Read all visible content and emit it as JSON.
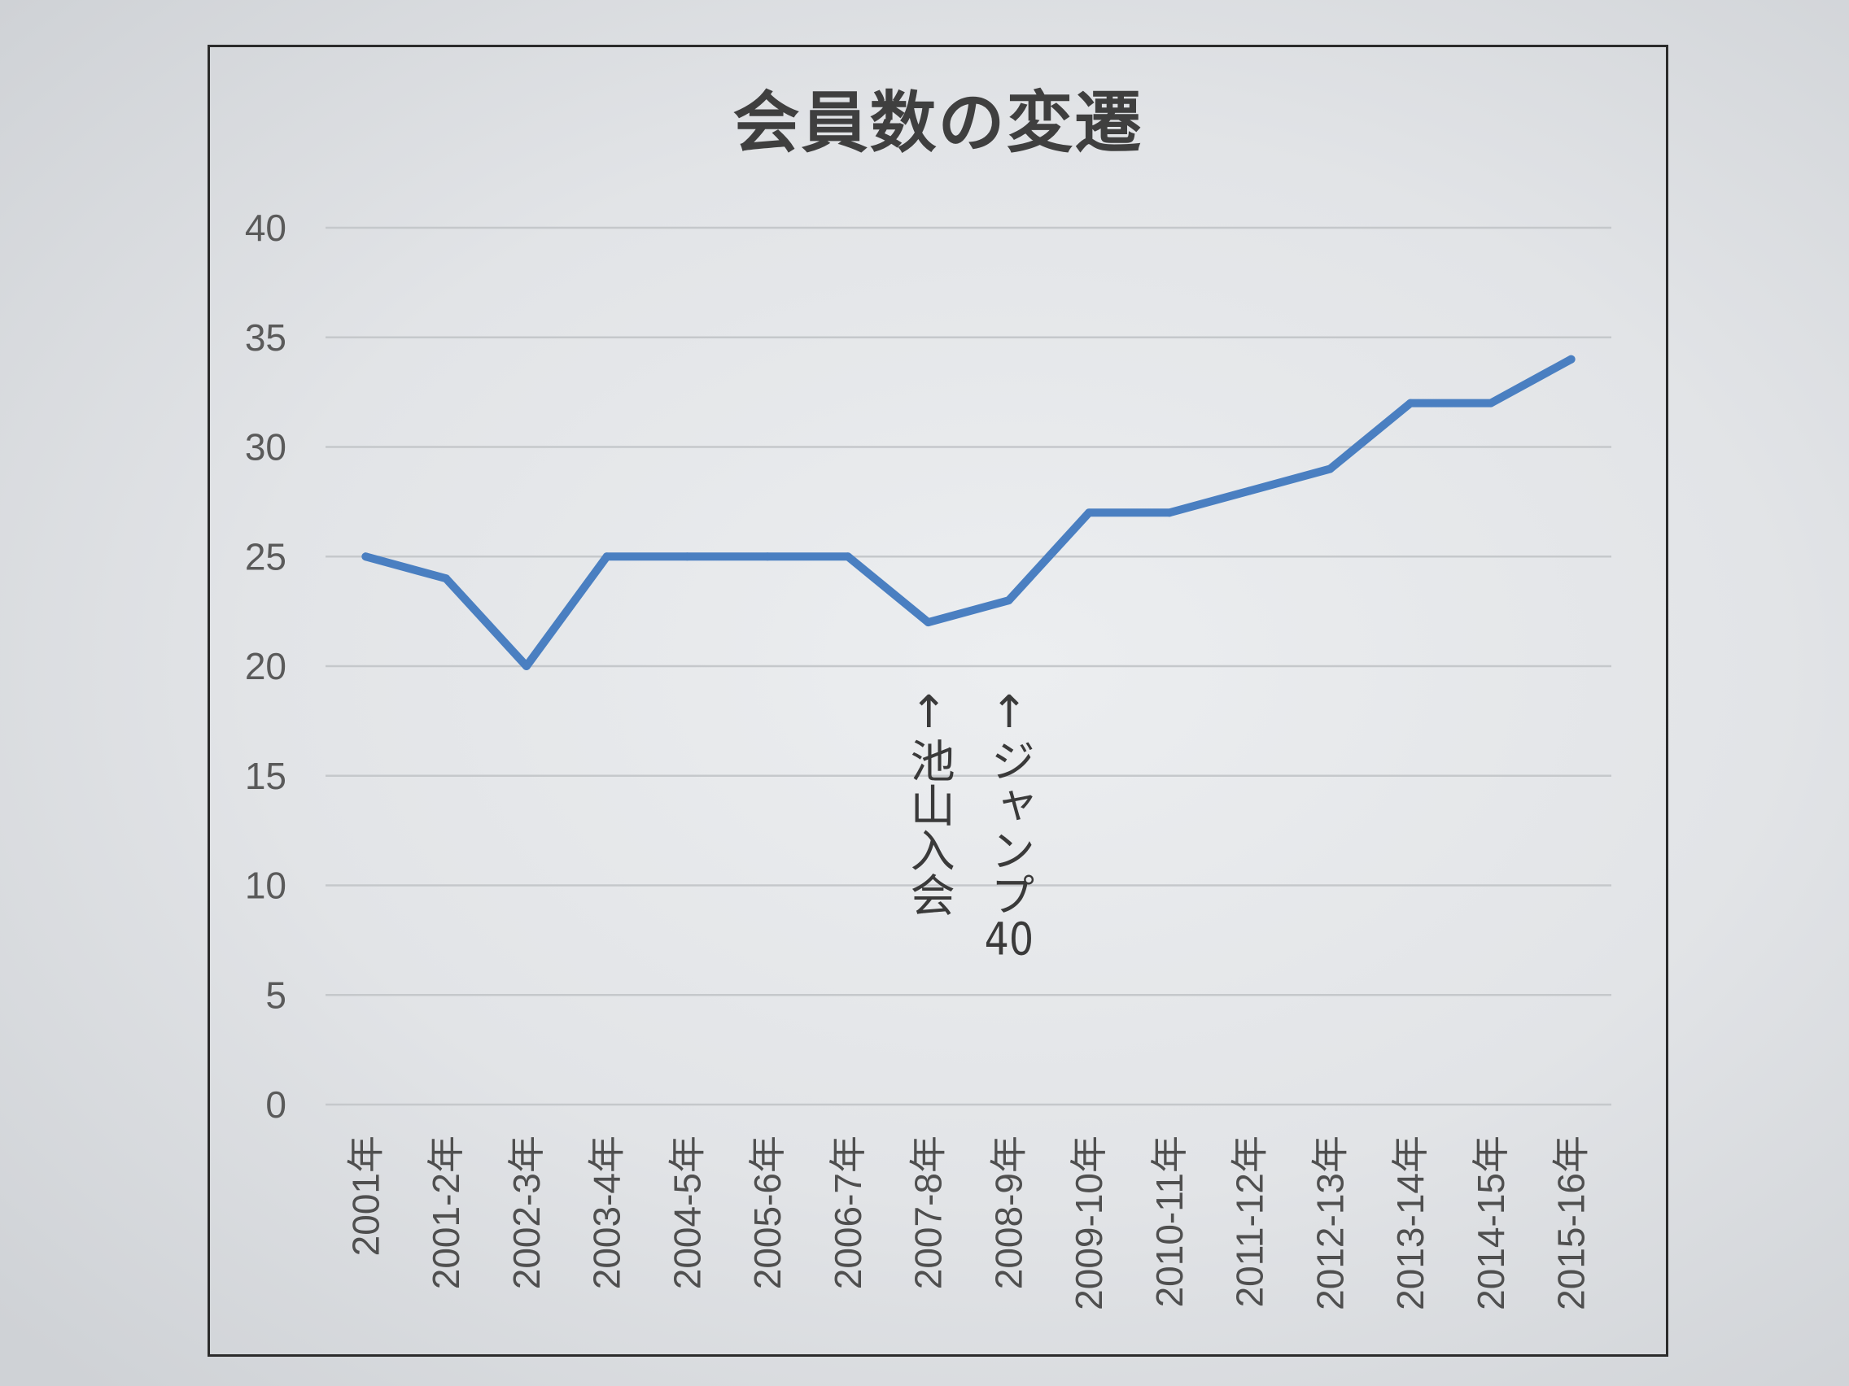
{
  "chart_data": {
    "type": "line",
    "title": "会員数の変遷",
    "xlabel": "",
    "ylabel": "",
    "categories": [
      "2001年",
      "2001-2年",
      "2002-3年",
      "2003-4年",
      "2004-5年",
      "2005-6年",
      "2006-7年",
      "2007-8年",
      "2008-9年",
      "2009-10年",
      "2010-11年",
      "2011-12年",
      "2012-13年",
      "2013-14年",
      "2014-15年",
      "2015-16年"
    ],
    "series": [
      {
        "values": [
          25,
          24,
          20,
          25,
          25,
          25,
          25,
          22,
          23,
          27,
          27,
          28,
          29,
          32,
          32,
          34
        ],
        "color": "#4a7fc1"
      }
    ],
    "ylim": [
      0,
      40
    ],
    "yticks": [
      0,
      5,
      10,
      15,
      20,
      25,
      30,
      35,
      40
    ],
    "grid": true,
    "legend": "none",
    "annotations": [
      {
        "x": "2007-8年",
        "text": "↑池山入会"
      },
      {
        "x": "2008-9年",
        "text": "↑ジャンプ40"
      }
    ]
  }
}
